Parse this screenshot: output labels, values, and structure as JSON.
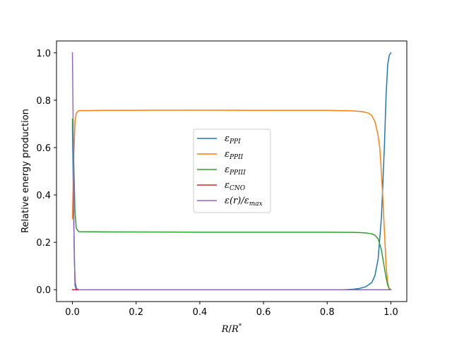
{
  "chart_data": {
    "type": "line",
    "xlabel": "R/R*",
    "ylabel": "Relative energy production",
    "xlim": [
      -0.05,
      1.05
    ],
    "ylim": [
      -0.05,
      1.05
    ],
    "xticks": [
      0.0,
      0.2,
      0.4,
      0.6,
      0.8,
      1.0
    ],
    "xtick_labels": [
      "0.0",
      "0.2",
      "0.4",
      "0.6",
      "0.8",
      "1.0"
    ],
    "yticks": [
      0.0,
      0.2,
      0.4,
      0.6,
      0.8,
      1.0
    ],
    "ytick_labels": [
      "0.0",
      "0.2",
      "0.4",
      "0.6",
      "0.8",
      "1.0"
    ],
    "grid": false,
    "legend_position": "center",
    "series": [
      {
        "name": "ε_PPI",
        "legend_label": "εPPI",
        "color": "#1f77b4",
        "points": [
          [
            0.0,
            0.7
          ],
          [
            0.004,
            0.3
          ],
          [
            0.008,
            0.02
          ],
          [
            0.012,
            0.0
          ],
          [
            0.85,
            0.0
          ],
          [
            0.88,
            0.002
          ],
          [
            0.9,
            0.005
          ],
          [
            0.92,
            0.012
          ],
          [
            0.94,
            0.03
          ],
          [
            0.95,
            0.06
          ],
          [
            0.96,
            0.13
          ],
          [
            0.97,
            0.3
          ],
          [
            0.975,
            0.45
          ],
          [
            0.98,
            0.62
          ],
          [
            0.985,
            0.82
          ],
          [
            0.99,
            0.95
          ],
          [
            0.995,
            0.99
          ],
          [
            1.0,
            1.0
          ]
        ]
      },
      {
        "name": "ε_PPII",
        "legend_label": "εPPII",
        "color": "#ff7f0e",
        "points": [
          [
            0.0,
            0.3
          ],
          [
            0.004,
            0.55
          ],
          [
            0.008,
            0.71
          ],
          [
            0.012,
            0.745
          ],
          [
            0.02,
            0.756
          ],
          [
            0.1,
            0.757
          ],
          [
            0.4,
            0.758
          ],
          [
            0.68,
            0.757
          ],
          [
            0.8,
            0.757
          ],
          [
            0.88,
            0.755
          ],
          [
            0.91,
            0.752
          ],
          [
            0.93,
            0.745
          ],
          [
            0.94,
            0.735
          ],
          [
            0.95,
            0.71
          ],
          [
            0.96,
            0.65
          ],
          [
            0.965,
            0.6
          ],
          [
            0.97,
            0.5
          ],
          [
            0.975,
            0.38
          ],
          [
            0.98,
            0.24
          ],
          [
            0.985,
            0.1
          ],
          [
            0.99,
            0.03
          ],
          [
            0.995,
            0.0
          ],
          [
            1.0,
            0.0
          ]
        ]
      },
      {
        "name": "ε_PPIII",
        "legend_label": "εPPIII",
        "color": "#2ca02c",
        "points": [
          [
            0.0,
            0.72
          ],
          [
            0.004,
            0.55
          ],
          [
            0.008,
            0.33
          ],
          [
            0.012,
            0.26
          ],
          [
            0.02,
            0.245
          ],
          [
            0.1,
            0.244
          ],
          [
            0.4,
            0.243
          ],
          [
            0.68,
            0.243
          ],
          [
            0.8,
            0.243
          ],
          [
            0.88,
            0.242
          ],
          [
            0.92,
            0.24
          ],
          [
            0.94,
            0.236
          ],
          [
            0.95,
            0.23
          ],
          [
            0.96,
            0.215
          ],
          [
            0.97,
            0.17
          ],
          [
            0.975,
            0.13
          ],
          [
            0.98,
            0.09
          ],
          [
            0.985,
            0.05
          ],
          [
            0.99,
            0.02
          ],
          [
            0.995,
            0.005
          ],
          [
            1.0,
            0.0
          ]
        ]
      },
      {
        "name": "ε_CNO",
        "legend_label": "εCNO",
        "color": "#d62728",
        "points": [
          [
            0.0,
            0.0
          ],
          [
            0.3,
            0.0
          ],
          [
            0.6,
            0.0
          ],
          [
            0.9,
            0.0
          ],
          [
            1.0,
            0.0
          ]
        ]
      },
      {
        "name": "ε(r)/ε_max",
        "legend_label": "ε(r)/εmax",
        "color": "#9467bd",
        "points": [
          [
            0.0,
            1.0
          ],
          [
            0.002,
            0.75
          ],
          [
            0.004,
            0.35
          ],
          [
            0.006,
            0.12
          ],
          [
            0.009,
            0.03
          ],
          [
            0.013,
            0.005
          ],
          [
            0.02,
            0.0
          ],
          [
            0.5,
            0.0
          ],
          [
            1.0,
            0.0
          ]
        ]
      }
    ]
  }
}
